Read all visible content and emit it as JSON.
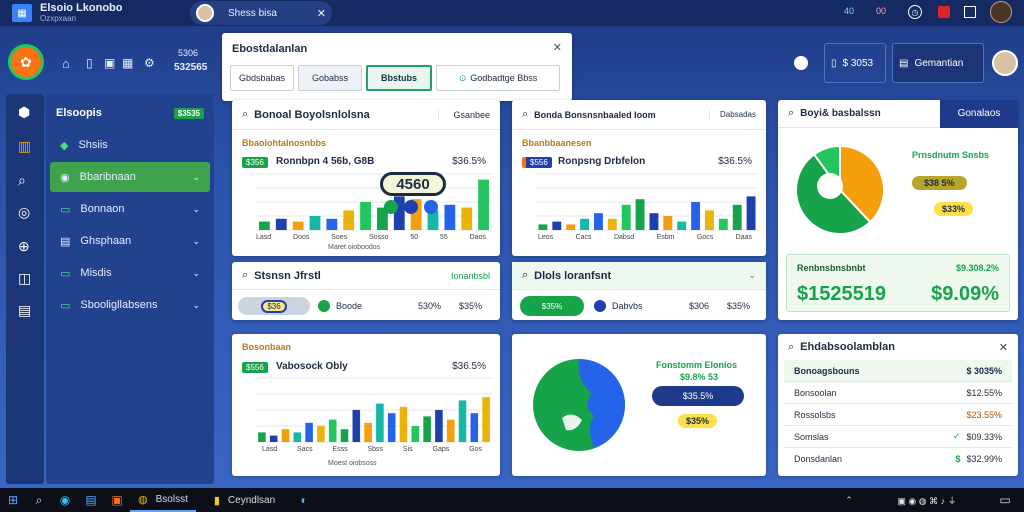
{
  "window": {
    "title": "Elsoio Lkonobo",
    "subtitle": "Ozxpxaan",
    "user_tab": "Shess bisa",
    "tray_badge_1": "40",
    "tray_badge_2": "00"
  },
  "toolbar": {
    "stat_label": "5306",
    "stat_value": "532565",
    "right_stat": "$ 3053",
    "right_button": "Gemantian"
  },
  "sidebar": {
    "header": {
      "label": "Elsoopis",
      "badge": "$3535"
    },
    "items": [
      {
        "label": "Shsiis",
        "active": false
      },
      {
        "label": "Bbaribnaan",
        "active": true
      },
      {
        "label": "Bonnaon",
        "active": false
      },
      {
        "label": "Ghsphaan",
        "active": false
      },
      {
        "label": "Misdis",
        "active": false
      },
      {
        "label": "Sbooligllabsens",
        "active": false
      }
    ]
  },
  "dialog": {
    "title": "Ebostdalanlan",
    "tabs": [
      "Gbdsbabas",
      "Gobabss",
      "Bbstubs",
      "Godbadtge Bbss"
    ],
    "active_tab": 2
  },
  "cards": {
    "overview": {
      "search_label": "Bonoal Boyolsnlolsna",
      "action": "Gsanbee",
      "subtitle": "Bbaoiohtalnosnbbs",
      "tag": "$356",
      "series_label": "Ronnbpn 4 56b, G8B",
      "pct": "$36.5%",
      "ticks": [
        "Lasd",
        "Doos",
        "Soes",
        "Sosso",
        "50",
        "55",
        "Daos"
      ],
      "xlabel": "Maret oioboodos",
      "overlay_value": "4560"
    },
    "breakdown": {
      "search_label": "Bonda Bonsnsnbaaled Ioom",
      "action": "Dabsadas",
      "subtitle": "Bbanbbaanesen",
      "tag": "$556",
      "series_label": "Ronpsng Drbfelon",
      "pct": "$36.5%",
      "ticks": [
        "Leos",
        "Cacs",
        "Dabsd",
        "Esbm",
        "Gocs",
        "Daas"
      ]
    },
    "donut": {
      "title": "Boyi& basbalssn",
      "button": "Gonalaos",
      "legend_title": "Prnsdnutm Snsbs",
      "pill1": "$38 5%",
      "pill2": "$33%"
    },
    "status": {
      "search_label": "Stsnsn Jfrstl",
      "action": "Ionanbsbl",
      "chip": "$36",
      "legend": "Boode",
      "v1": "530%",
      "v2": "$35%"
    },
    "detail": {
      "search_label": "Dlols loranfsnt",
      "chip": "$35%",
      "legend": "Dabvbs",
      "v1": "$306",
      "v2": "$35%"
    },
    "totals": {
      "label1": "Renbnsbnsbnbt",
      "value1": "$1525519",
      "label2": "$9.308.2%",
      "value2": "$9.09%"
    },
    "comparison": {
      "subtitle": "Bosonbaan",
      "tag": "$556",
      "series_label": "Vabosock Obly",
      "pct": "$36.5%",
      "ticks": [
        "Lasd",
        "Sacs",
        "Esss",
        "Sbss",
        "Sis",
        "Gaps",
        "Gos"
      ],
      "xlabel": "Moest oiobsoss"
    },
    "geo": {
      "legend_title": "Fonstomm Elonios",
      "legend_sub": "$9.8% 53",
      "pill1": "$35.5%",
      "pill2": "$35%"
    },
    "table": {
      "title": "Ehdabsoolamblan",
      "rows": [
        {
          "label": "Bonoagsbouns",
          "value": "$ 3035%",
          "icon": ""
        },
        {
          "label": "Bonsoolan",
          "value": "$12.55%",
          "icon": ""
        },
        {
          "label": "Rossolsbs",
          "value": "$23.55%",
          "icon": ""
        },
        {
          "label": "Somslas",
          "value": "$09.33%",
          "icon": "check"
        },
        {
          "label": "Donsdanlan",
          "value": "$32.99%",
          "icon": "dollar"
        }
      ]
    }
  },
  "taskbar": {
    "app1": "Bsolsst",
    "app2": "Ceyndlsan"
  },
  "chart_data": [
    {
      "type": "bar",
      "categories": [
        "1",
        "2",
        "3",
        "4",
        "5",
        "6",
        "7",
        "8",
        "9",
        "10",
        "11",
        "12",
        "13",
        "14"
      ],
      "series": [
        {
          "values": [
            3,
            4,
            3,
            5,
            4,
            7,
            10,
            8,
            12,
            11,
            7,
            9,
            8,
            18
          ]
        }
      ],
      "ylim": [
        0,
        20
      ]
    },
    {
      "type": "bar",
      "categories": [
        "1",
        "2",
        "3",
        "4",
        "5",
        "6",
        "7",
        "8",
        "9",
        "10",
        "11",
        "12",
        "13",
        "14",
        "15",
        "16"
      ],
      "series": [
        {
          "values": [
            2,
            3,
            2,
            4,
            6,
            4,
            9,
            11,
            6,
            5,
            3,
            10,
            7,
            4,
            9,
            12
          ]
        }
      ],
      "ylim": [
        0,
        20
      ]
    },
    {
      "type": "bar",
      "categories": [
        "1",
        "2",
        "3",
        "4",
        "5",
        "6",
        "7",
        "8",
        "9",
        "10",
        "11",
        "12",
        "13",
        "14",
        "15",
        "16",
        "17",
        "18",
        "19",
        "20"
      ],
      "series": [
        {
          "values": [
            3,
            2,
            4,
            3,
            6,
            5,
            7,
            4,
            10,
            6,
            12,
            9,
            11,
            5,
            8,
            10,
            7,
            13,
            9,
            14
          ]
        }
      ],
      "ylim": [
        0,
        20
      ]
    },
    {
      "type": "pie",
      "categories": [
        "orange",
        "green",
        "light-green"
      ],
      "values": [
        38,
        52,
        10
      ]
    }
  ],
  "colors": {
    "green": "#16a34a",
    "blue": "#1e40af",
    "orange": "#f59e0b",
    "yellow": "#eab308",
    "teal": "#14b8a6"
  }
}
